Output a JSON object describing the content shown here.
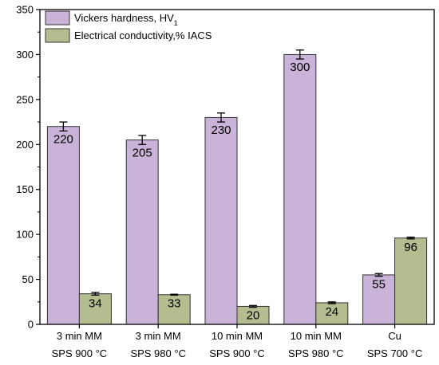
{
  "chart_data": {
    "type": "bar",
    "categories": [
      [
        "3 min MM",
        "SPS 900 °C"
      ],
      [
        "3 min MM",
        "SPS 980 °C"
      ],
      [
        "10 min MM",
        "SPS 900 °C"
      ],
      [
        "10 min MM",
        "SPS 980 °C"
      ],
      [
        "Cu",
        "SPS 700 °C"
      ]
    ],
    "series": [
      {
        "name": "Vickers hardness, HV",
        "name_subscript": "1",
        "values": [
          220,
          205,
          230,
          300,
          55
        ],
        "errors": [
          5,
          5,
          5,
          5,
          1.5
        ],
        "labels": [
          "220",
          "205",
          "230",
          "300",
          "55"
        ],
        "color": "#c9b3d9"
      },
      {
        "name": "Electrical conductivity,% IACS",
        "values": [
          34,
          33,
          20,
          24,
          96
        ],
        "errors": [
          1.5,
          0.5,
          1,
          1,
          1
        ],
        "labels": [
          "34",
          "33",
          "20",
          "24",
          "96"
        ],
        "color": "#b3bd8f"
      }
    ],
    "ylim": [
      0,
      350
    ],
    "yticks": [
      0,
      50,
      100,
      150,
      200,
      250,
      300,
      350
    ],
    "legend_position": "top-left",
    "grid": false
  }
}
